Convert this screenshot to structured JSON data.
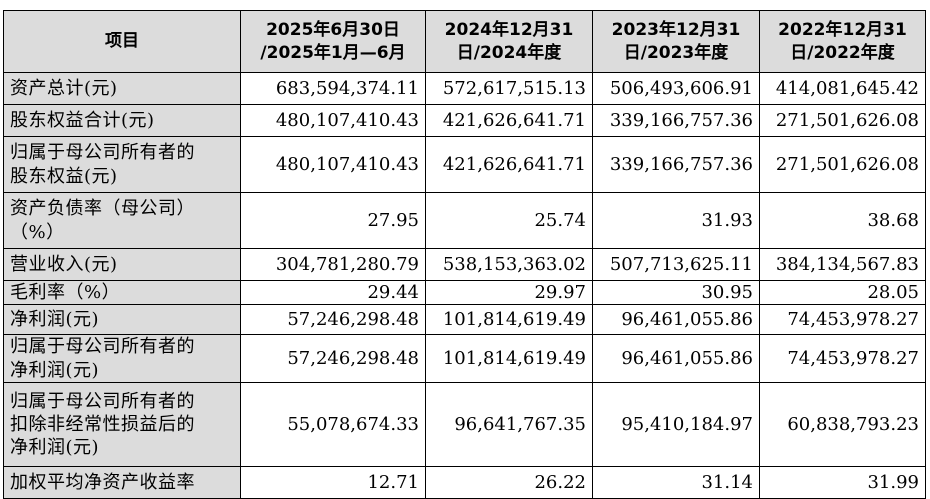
{
  "table": {
    "headers": [
      "项目",
      "2025年6月30日\n/2025年1月—6月",
      "2024年12月31\n日/2024年度",
      "2023年12月31\n日/2023年度",
      "2022年12月31\n日/2022年度"
    ],
    "rows": [
      {
        "label": "资产总计(元)",
        "values": [
          "683,594,374.11",
          "572,617,515.13",
          "506,493,606.91",
          "414,081,645.42"
        ]
      },
      {
        "label": "股东权益合计(元)",
        "values": [
          "480,107,410.43",
          "421,626,641.71",
          "339,166,757.36",
          "271,501,626.08"
        ]
      },
      {
        "label": "归属于母公司所有者的\n股东权益(元)",
        "values": [
          "480,107,410.43",
          "421,626,641.71",
          "339,166,757.36",
          "271,501,626.08"
        ]
      },
      {
        "label": "资产负债率（母公司）\n（%）",
        "values": [
          "27.95",
          "25.74",
          "31.93",
          "38.68"
        ]
      },
      {
        "label": "营业收入(元)",
        "values": [
          "304,781,280.79",
          "538,153,363.02",
          "507,713,625.11",
          "384,134,567.83"
        ]
      },
      {
        "label": "毛利率（%）",
        "values": [
          "29.44",
          "29.97",
          "30.95",
          "28.05"
        ]
      },
      {
        "label": "净利润(元)",
        "values": [
          "57,246,298.48",
          "101,814,619.49",
          "96,461,055.86",
          "74,453,978.27"
        ]
      },
      {
        "label": "归属于母公司所有者的\n净利润(元)",
        "values": [
          "57,246,298.48",
          "101,814,619.49",
          "96,461,055.86",
          "74,453,978.27"
        ]
      },
      {
        "label": "归属于母公司所有者的\n扣除非经常性损益后的\n净利润(元)",
        "values": [
          "55,078,674.33",
          "96,641,767.35",
          "95,410,184.97",
          "60,838,793.23"
        ]
      },
      {
        "label": "加权平均净资产收益率",
        "values": [
          "12.71",
          "26.22",
          "31.14",
          "31.99"
        ]
      }
    ]
  }
}
